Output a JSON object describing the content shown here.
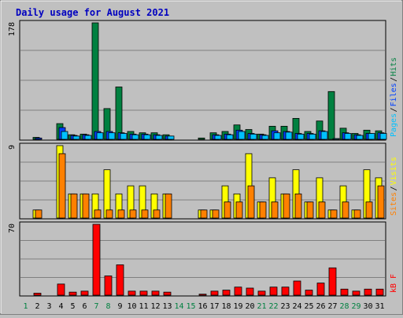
{
  "title": "Daily usage for August 2021",
  "colors": {
    "background": "#C0C0C0",
    "hits": "#008040",
    "files": "#0040FF",
    "pages": "#00C0FF",
    "visits": "#FFFF00",
    "sites": "#FF8000",
    "kbytes": "#FF0000",
    "title": "#0000C0",
    "weekday": "#000000",
    "weekend": "#008040"
  },
  "chart_data": [
    {
      "type": "bar",
      "panel": "hits-files-pages",
      "ymax_label": "178",
      "ylim": [
        0,
        178
      ],
      "legend": [
        {
          "name": "Pages",
          "color": "#00C0FF"
        },
        {
          "name": "Files",
          "color": "#0040FF"
        },
        {
          "name": "Hits",
          "color": "#008040"
        }
      ],
      "categories": [
        "1",
        "2",
        "3",
        "4",
        "5",
        "6",
        "7",
        "8",
        "9",
        "10",
        "11",
        "12",
        "13",
        "14",
        "15",
        "16",
        "17",
        "18",
        "19",
        "20",
        "21",
        "22",
        "23",
        "24",
        "25",
        "26",
        "27",
        "28",
        "29",
        "30",
        "31"
      ],
      "series": [
        {
          "name": "Hits",
          "values": [
            0,
            3,
            0,
            24,
            7,
            8,
            178,
            47,
            80,
            12,
            10,
            10,
            7,
            0,
            0,
            2,
            10,
            12,
            22,
            15,
            8,
            20,
            20,
            32,
            12,
            28,
            73,
            17,
            9,
            14,
            13
          ]
        },
        {
          "name": "Files",
          "values": [
            0,
            2,
            0,
            18,
            6,
            7,
            12,
            12,
            10,
            8,
            8,
            7,
            5,
            0,
            0,
            0,
            7,
            8,
            14,
            9,
            7,
            13,
            12,
            9,
            9,
            13,
            0,
            10,
            7,
            9,
            10
          ]
        },
        {
          "name": "Pages",
          "values": [
            0,
            0,
            0,
            12,
            5,
            6,
            10,
            10,
            9,
            7,
            7,
            6,
            5,
            0,
            0,
            0,
            6,
            7,
            12,
            8,
            6,
            10,
            11,
            8,
            8,
            12,
            1,
            9,
            6,
            9,
            9
          ]
        }
      ]
    },
    {
      "type": "bar",
      "panel": "visits-sites",
      "ymax_label": "9",
      "ylim": [
        0,
        9
      ],
      "legend": [
        {
          "name": "Sites",
          "color": "#FF8000"
        },
        {
          "name": "Visits",
          "color": "#FFFF00"
        }
      ],
      "categories": [
        "1",
        "2",
        "3",
        "4",
        "5",
        "6",
        "7",
        "8",
        "9",
        "10",
        "11",
        "12",
        "13",
        "14",
        "15",
        "16",
        "17",
        "18",
        "19",
        "20",
        "21",
        "22",
        "23",
        "24",
        "25",
        "26",
        "27",
        "28",
        "29",
        "30",
        "31"
      ],
      "series": [
        {
          "name": "Visits",
          "values": [
            0,
            1,
            0,
            9,
            3,
            3,
            3,
            6,
            3,
            4,
            4,
            3,
            3,
            0,
            0,
            1,
            1,
            4,
            3,
            8,
            2,
            5,
            3,
            6,
            2,
            5,
            1,
            4,
            1,
            6,
            5
          ]
        },
        {
          "name": "Sites",
          "values": [
            0,
            1,
            0,
            8,
            3,
            3,
            1,
            1,
            1,
            1,
            1,
            1,
            3,
            0,
            0,
            1,
            1,
            2,
            2,
            4,
            2,
            2,
            3,
            3,
            2,
            2,
            1,
            2,
            1,
            2,
            4
          ]
        }
      ]
    },
    {
      "type": "bar",
      "panel": "kbytes",
      "ymax_label": "70",
      "ylim": [
        0,
        70
      ],
      "legend": [
        {
          "name": "kB F",
          "color": "#FF0000"
        }
      ],
      "categories": [
        "1",
        "2",
        "3",
        "4",
        "5",
        "6",
        "7",
        "8",
        "9",
        "10",
        "11",
        "12",
        "13",
        "14",
        "15",
        "16",
        "17",
        "18",
        "19",
        "20",
        "21",
        "22",
        "23",
        "24",
        "25",
        "26",
        "27",
        "28",
        "29",
        "30",
        "31"
      ],
      "series": [
        {
          "name": "kB F",
          "values": [
            0,
            2,
            0,
            11,
            3,
            4,
            70,
            19,
            30,
            4,
            4,
            4,
            3,
            0,
            0,
            1,
            4,
            5,
            8,
            7,
            4,
            8,
            8,
            14,
            5,
            12,
            27,
            6,
            4,
            6,
            6
          ]
        }
      ]
    }
  ],
  "days": [
    "1",
    "2",
    "3",
    "4",
    "5",
    "6",
    "7",
    "8",
    "9",
    "10",
    "11",
    "12",
    "13",
    "14",
    "15",
    "16",
    "17",
    "18",
    "19",
    "20",
    "21",
    "22",
    "23",
    "24",
    "25",
    "26",
    "27",
    "28",
    "29",
    "30",
    "31"
  ],
  "weekend_days": [
    "1",
    "7",
    "8",
    "14",
    "15",
    "21",
    "22",
    "28",
    "29"
  ]
}
